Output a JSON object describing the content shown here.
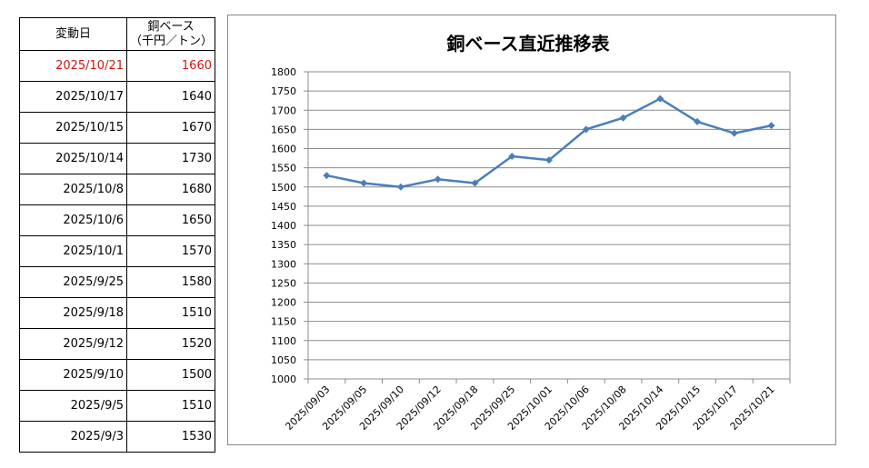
{
  "table": {
    "header_date": "変動日",
    "header_price_line1": "銅ベース",
    "header_price_line2": "（千円／トン）",
    "rows": [
      {
        "date": "2025/10/21",
        "price": "1660",
        "highlight": true
      },
      {
        "date": "2025/10/17",
        "price": "1640"
      },
      {
        "date": "2025/10/15",
        "price": "1670"
      },
      {
        "date": "2025/10/14",
        "price": "1730"
      },
      {
        "date": "2025/10/8",
        "price": "1680"
      },
      {
        "date": "2025/10/6",
        "price": "1650"
      },
      {
        "date": "2025/10/1",
        "price": "1570"
      },
      {
        "date": "2025/9/25",
        "price": "1580"
      },
      {
        "date": "2025/9/18",
        "price": "1510"
      },
      {
        "date": "2025/9/12",
        "price": "1520"
      },
      {
        "date": "2025/9/10",
        "price": "1500"
      },
      {
        "date": "2025/9/5",
        "price": "1510"
      },
      {
        "date": "2025/9/3",
        "price": "1530"
      }
    ],
    "highlight_color": "#d21414"
  },
  "chart_data": {
    "type": "line",
    "title": "銅ベース直近推移表",
    "categories": [
      "2025/09/03",
      "2025/09/05",
      "2025/09/10",
      "2025/09/12",
      "2025/09/18",
      "2025/09/25",
      "2025/10/01",
      "2025/10/06",
      "2025/10/08",
      "2025/10/14",
      "2025/10/15",
      "2025/10/17",
      "2025/10/21"
    ],
    "series": [
      {
        "values": [
          1530,
          1510,
          1500,
          1520,
          1510,
          1580,
          1570,
          1650,
          1680,
          1730,
          1670,
          1640,
          1660
        ],
        "color": "#4a7ebb",
        "marker": "diamond"
      }
    ],
    "ylim": [
      1000,
      1800
    ],
    "ystep": 50,
    "grid": true,
    "legend": "none",
    "xlabel": "",
    "ylabel": ""
  }
}
